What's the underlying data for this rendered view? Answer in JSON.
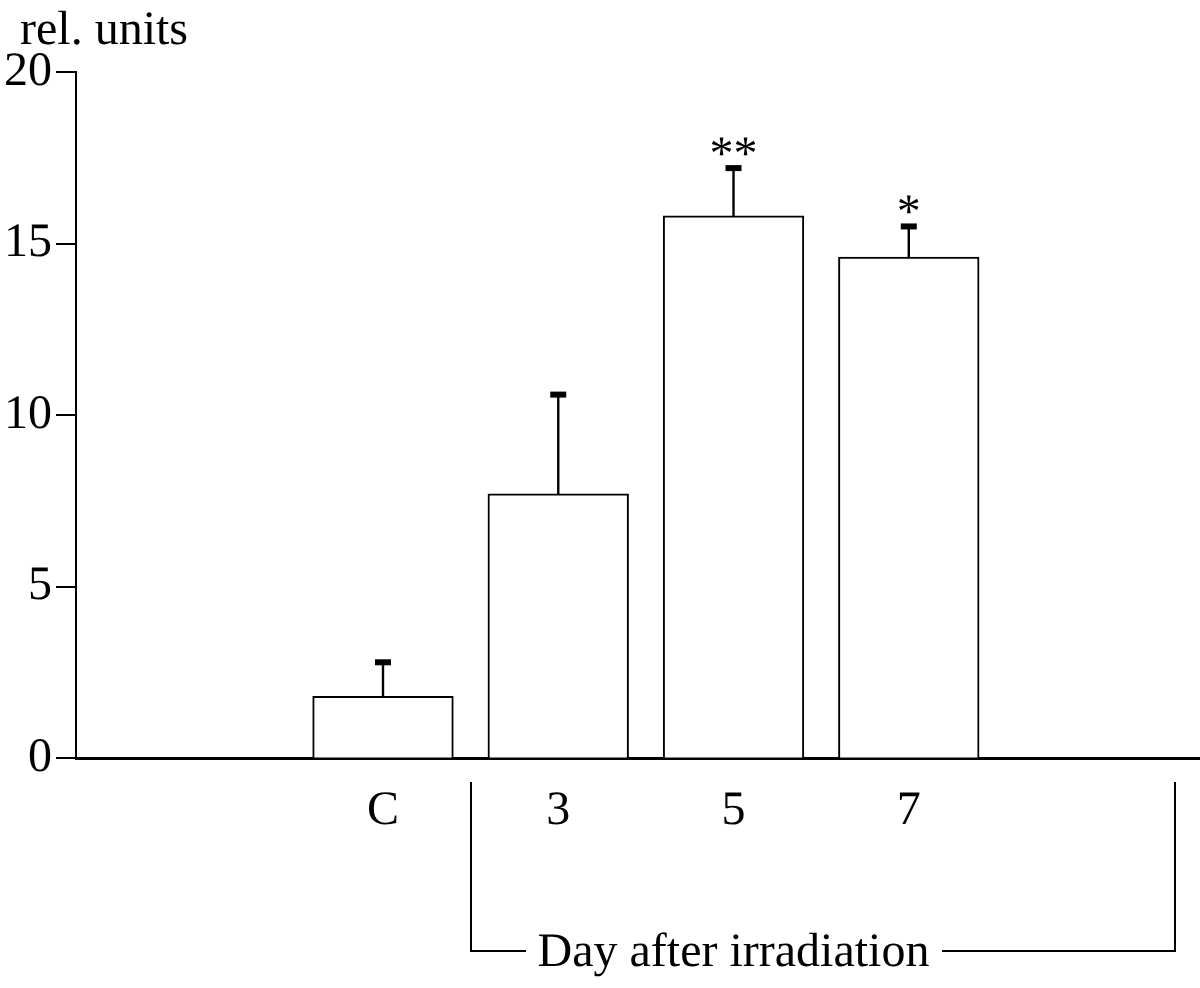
{
  "chart_data": {
    "type": "bar",
    "ylabel": "rel. units",
    "xlabel": "Day after irradiation",
    "categories": [
      "C",
      "3",
      "5",
      "7"
    ],
    "values": [
      1.8,
      7.7,
      15.8,
      14.6
    ],
    "errors": [
      [
        1.8,
        2.8
      ],
      [
        7.7,
        10.6
      ],
      [
        15.8,
        17.2
      ],
      [
        14.6,
        15.5
      ]
    ],
    "color": "#ffffff",
    "ylim": [
      0,
      20
    ],
    "yticks": [
      0,
      5,
      10,
      15,
      20
    ],
    "grid": false,
    "legend": false,
    "annotations": [
      {
        "text": "**",
        "x": "5",
        "y": 17.2
      },
      {
        "text": "*",
        "x": "7",
        "y": 15.5
      }
    ]
  }
}
